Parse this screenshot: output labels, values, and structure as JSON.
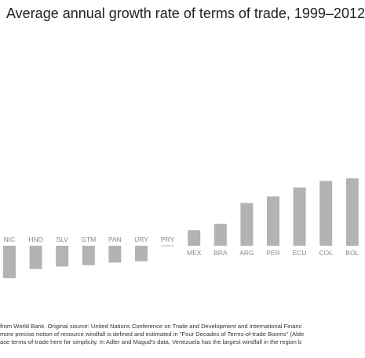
{
  "chart_data": {
    "type": "bar",
    "title": "Average annual growth rate of terms of trade, 1999–2012",
    "xlabel": "",
    "ylabel": "",
    "categories": [
      "NIC",
      "HND",
      "SLV",
      "GTM",
      "PAN",
      "URY",
      "PRY",
      "MEX",
      "BRA",
      "ARG",
      "PER",
      "ECU",
      "COL",
      "BOL"
    ],
    "values": [
      -2.5,
      -1.8,
      -1.6,
      -1.5,
      -1.3,
      -1.2,
      0,
      1.2,
      1.7,
      3.3,
      3.8,
      4.5,
      5.0,
      5.2
    ],
    "ylim": [
      -3,
      6
    ],
    "grid": false,
    "legend": "none",
    "colors": {
      "bar": "#b3b3b3",
      "zero_line": "#b3b3b3",
      "tick_label": "#888888"
    }
  },
  "footnotes": [
    "from World Bank.  Original source: United Nations Conference on Trade and Development and International Financ",
    "more precise notion of resource windfall is defined and estimated in \"Four Decades of Terms-of-trade Booms\" (Alde",
    "ase terms-of-trade here for simplicity. In Adler and Magud's data, Venezuela has the largest windfall in the region b"
  ]
}
